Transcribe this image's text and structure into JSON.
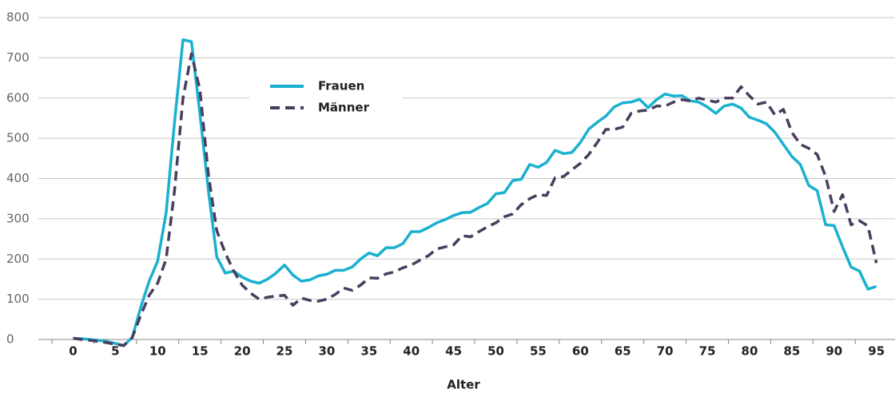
{
  "chart_data": {
    "type": "line",
    "xlabel": "Alter",
    "x": [
      0,
      1,
      2,
      3,
      4,
      5,
      6,
      7,
      8,
      9,
      10,
      11,
      12,
      13,
      14,
      15,
      16,
      17,
      18,
      19,
      20,
      21,
      22,
      23,
      24,
      25,
      26,
      27,
      28,
      29,
      30,
      31,
      32,
      33,
      34,
      35,
      36,
      37,
      38,
      39,
      40,
      41,
      42,
      43,
      44,
      45,
      46,
      47,
      48,
      49,
      50,
      51,
      52,
      53,
      54,
      55,
      56,
      57,
      58,
      59,
      60,
      61,
      62,
      63,
      64,
      65,
      66,
      67,
      68,
      69,
      70,
      71,
      72,
      73,
      74,
      75,
      76,
      77,
      78,
      79,
      80,
      81,
      82,
      83,
      84,
      85,
      86,
      87,
      88,
      89,
      90,
      91,
      92,
      93,
      94,
      95
    ],
    "series": [
      {
        "name": "Frauen",
        "color": "#19b1cf",
        "dash": false,
        "values": [
          3,
          2,
          0,
          -2,
          -5,
          -10,
          -15,
          5,
          80,
          145,
          195,
          315,
          540,
          745,
          740,
          560,
          370,
          205,
          165,
          170,
          155,
          145,
          140,
          150,
          165,
          185,
          160,
          145,
          148,
          158,
          162,
          172,
          172,
          180,
          200,
          215,
          208,
          228,
          228,
          238,
          268,
          268,
          278,
          290,
          298,
          308,
          315,
          316,
          328,
          338,
          362,
          365,
          395,
          398,
          435,
          428,
          440,
          470,
          462,
          465,
          490,
          523,
          540,
          555,
          578,
          588,
          590,
          597,
          576,
          596,
          610,
          605,
          606,
          593,
          590,
          578,
          562,
          580,
          585,
          575,
          552,
          545,
          536,
          515,
          485,
          455,
          435,
          383,
          370,
          285,
          283,
          230,
          180,
          170,
          125,
          132
        ]
      },
      {
        "name": "Männer",
        "color": "#4a3d5e",
        "dash": true,
        "values": [
          3,
          0,
          -2,
          -5,
          -8,
          -12,
          -15,
          5,
          60,
          110,
          140,
          200,
          370,
          600,
          710,
          620,
          410,
          270,
          215,
          170,
          135,
          115,
          100,
          105,
          108,
          110,
          85,
          103,
          97,
          95,
          100,
          112,
          128,
          122,
          135,
          153,
          152,
          163,
          168,
          178,
          185,
          197,
          208,
          225,
          230,
          235,
          258,
          255,
          268,
          280,
          290,
          305,
          312,
          335,
          350,
          360,
          358,
          402,
          405,
          422,
          438,
          460,
          490,
          522,
          522,
          528,
          562,
          568,
          570,
          580,
          580,
          590,
          596,
          593,
          600,
          595,
          590,
          600,
          600,
          628,
          605,
          585,
          590,
          558,
          572,
          515,
          485,
          475,
          460,
          405,
          318,
          360,
          285,
          295,
          282,
          190
        ]
      }
    ],
    "xlim": [
      -2.5,
      97.2
    ],
    "xticks": [
      0,
      5,
      10,
      15,
      20,
      25,
      30,
      35,
      40,
      45,
      50,
      55,
      60,
      65,
      70,
      75,
      80,
      85,
      90,
      95
    ],
    "ylim": [
      0,
      800
    ],
    "yticks": [
      0,
      100,
      200,
      300,
      400,
      500,
      600,
      700,
      800
    ],
    "grid": true
  }
}
